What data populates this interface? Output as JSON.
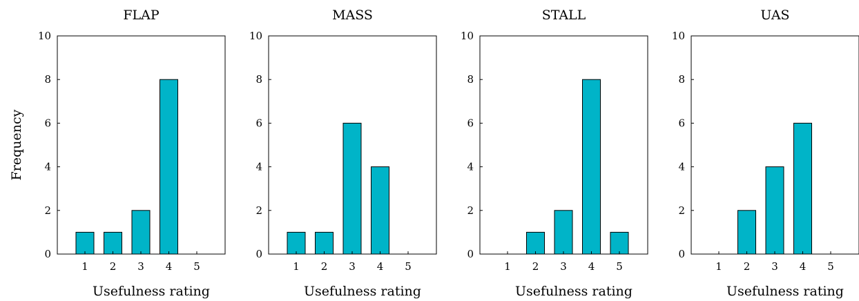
{
  "chart_data": [
    {
      "type": "bar",
      "title": "FLAP",
      "xlabel": "Usefulness rating",
      "ylabel": "Frequency",
      "categories": [
        "1",
        "2",
        "3",
        "4",
        "5"
      ],
      "values": [
        1,
        1,
        2,
        8,
        0
      ],
      "ylim": [
        0,
        10
      ],
      "yticks": [
        "0",
        "2",
        "4",
        "6",
        "8",
        "10"
      ],
      "grid": false,
      "bar_color": "#00b4c8"
    },
    {
      "type": "bar",
      "title": "MASS",
      "xlabel": "Usefulness rating",
      "ylabel": "",
      "categories": [
        "1",
        "2",
        "3",
        "4",
        "5"
      ],
      "values": [
        1,
        1,
        6,
        4,
        0
      ],
      "ylim": [
        0,
        10
      ],
      "yticks": [
        "0",
        "2",
        "4",
        "6",
        "8",
        "10"
      ],
      "grid": false,
      "bar_color": "#00b4c8"
    },
    {
      "type": "bar",
      "title": "STALL",
      "xlabel": "Usefulness rating",
      "ylabel": "",
      "categories": [
        "1",
        "2",
        "3",
        "4",
        "5"
      ],
      "values": [
        0,
        1,
        2,
        8,
        1
      ],
      "ylim": [
        0,
        10
      ],
      "yticks": [
        "0",
        "2",
        "4",
        "6",
        "8",
        "10"
      ],
      "grid": false,
      "bar_color": "#00b4c8"
    },
    {
      "type": "bar",
      "title": "UAS",
      "xlabel": "Usefulness rating",
      "ylabel": "",
      "categories": [
        "1",
        "2",
        "3",
        "4",
        "5"
      ],
      "values": [
        0,
        2,
        4,
        6,
        0
      ],
      "ylim": [
        0,
        10
      ],
      "yticks": [
        "0",
        "2",
        "4",
        "6",
        "8",
        "10"
      ],
      "grid": false,
      "bar_color": "#00b4c8"
    }
  ]
}
